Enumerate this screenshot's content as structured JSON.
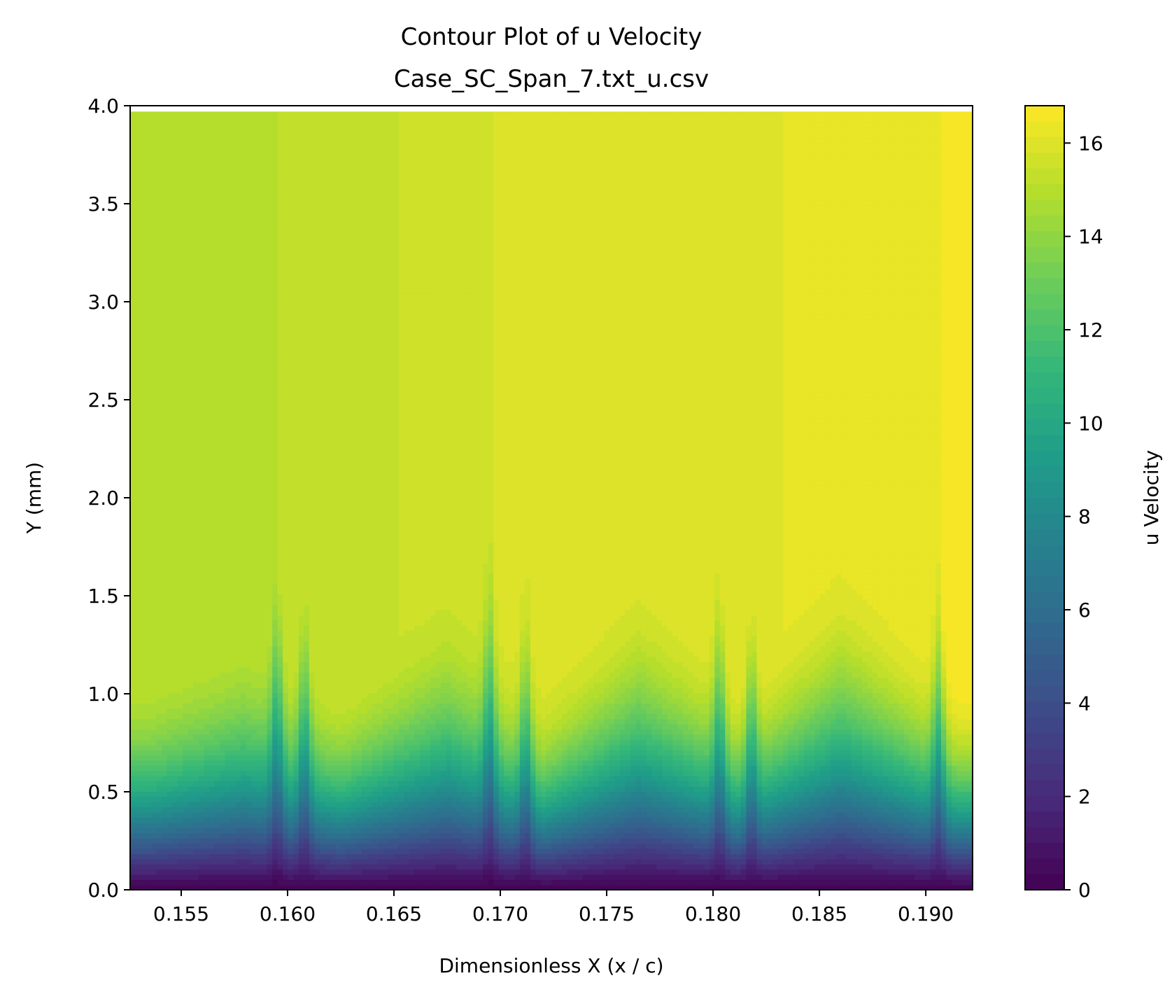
{
  "chart_data": {
    "type": "heatmap",
    "subtype": "filled-contour",
    "title": "Contour Plot of u Velocity",
    "subtitle": "Case_SC_Span_7.txt_u.csv",
    "xlabel": "Dimensionless X (x / c)",
    "ylabel": "Y (mm)",
    "xlim": [
      0.1526,
      0.1922
    ],
    "ylim": [
      0.0,
      4.0
    ],
    "data_ymax": 3.97,
    "x_ticks": [
      0.155,
      0.16,
      0.165,
      0.17,
      0.175,
      0.18,
      0.185,
      0.19
    ],
    "x_tick_labels": [
      "0.155",
      "0.160",
      "0.165",
      "0.170",
      "0.175",
      "0.180",
      "0.185",
      "0.190"
    ],
    "y_ticks": [
      0.0,
      0.5,
      1.0,
      1.5,
      2.0,
      2.5,
      3.0,
      3.5,
      4.0
    ],
    "y_tick_labels": [
      "0.0",
      "0.5",
      "1.0",
      "1.5",
      "2.0",
      "2.5",
      "3.0",
      "3.5",
      "4.0"
    ],
    "colorbar": {
      "label": "u Velocity",
      "colormap": "viridis",
      "range": [
        0,
        16.8
      ],
      "ticks": [
        0,
        2,
        4,
        6,
        8,
        10,
        12,
        14,
        16
      ],
      "tick_labels": [
        "0",
        "2",
        "4",
        "6",
        "8",
        "10",
        "12",
        "14",
        "16"
      ]
    },
    "freestream_u_by_x": [
      {
        "x": 0.1526,
        "u": 15.0
      },
      {
        "x": 0.1595,
        "u": 15.1
      },
      {
        "x": 0.1597,
        "u": 15.4
      },
      {
        "x": 0.1695,
        "u": 15.5
      },
      {
        "x": 0.1697,
        "u": 15.8
      },
      {
        "x": 0.1803,
        "u": 15.9
      },
      {
        "x": 0.1805,
        "u": 16.1
      },
      {
        "x": 0.1906,
        "u": 16.2
      },
      {
        "x": 0.1908,
        "u": 16.6
      },
      {
        "x": 0.1922,
        "u": 16.6
      }
    ],
    "boundary_layer_crests": [
      {
        "x": 0.158,
        "y": 1.35
      },
      {
        "x": 0.1675,
        "y": 1.52
      },
      {
        "x": 0.1765,
        "y": 1.6
      },
      {
        "x": 0.186,
        "y": 1.7
      }
    ],
    "boundary_layer_troughs": [
      {
        "x": 0.1535,
        "y": 1.1
      },
      {
        "x": 0.1625,
        "y": 1.05
      },
      {
        "x": 0.172,
        "y": 1.03
      },
      {
        "x": 0.1815,
        "y": 1.08
      },
      {
        "x": 0.1915,
        "y": 1.07
      }
    ],
    "low_velocity_streaks_x": [
      0.1595,
      0.1608,
      0.1695,
      0.1712,
      0.1803,
      0.1818,
      0.1906
    ]
  }
}
